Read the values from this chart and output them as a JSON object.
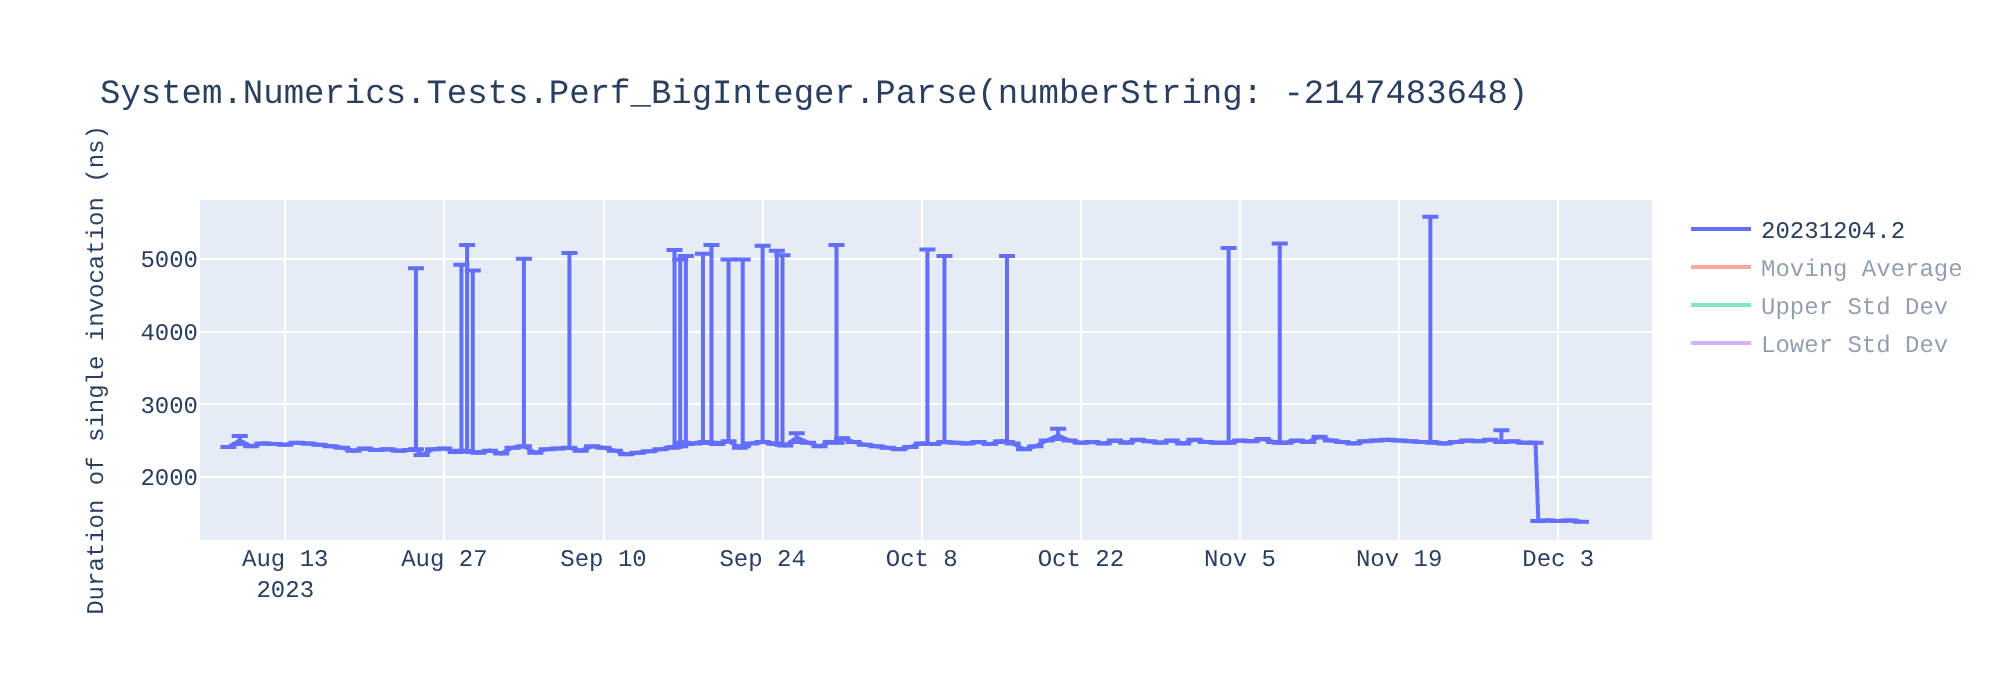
{
  "chart_data": {
    "type": "line",
    "title": "System.Numerics.Tests.Perf_BigInteger.Parse(numberString: -2147483648)",
    "ylabel": "Duration of single invocation (ns)",
    "x": [
      "2023-08-08",
      "2023-08-09",
      "2023-08-10",
      "2023-08-11",
      "2023-08-12",
      "2023-08-13",
      "2023-08-14",
      "2023-08-15",
      "2023-08-16",
      "2023-08-17",
      "2023-08-18",
      "2023-08-19",
      "2023-08-20",
      "2023-08-21",
      "2023-08-22",
      "2023-08-23",
      "2023-08-24",
      "2023-08-24T12:00",
      "2023-08-25",
      "2023-08-26",
      "2023-08-27",
      "2023-08-28",
      "2023-08-28T12:00",
      "2023-08-29",
      "2023-08-29T12:00",
      "2023-08-30",
      "2023-08-31",
      "2023-09-01",
      "2023-09-02",
      "2023-09-03",
      "2023-09-04",
      "2023-09-05",
      "2023-09-06",
      "2023-09-07",
      "2023-09-08",
      "2023-09-09",
      "2023-09-10",
      "2023-09-11",
      "2023-09-12",
      "2023-09-13",
      "2023-09-14",
      "2023-09-15",
      "2023-09-16",
      "2023-09-16T06:00",
      "2023-09-16T18:00",
      "2023-09-17",
      "2023-09-17T06:00",
      "2023-09-18",
      "2023-09-18T18:00",
      "2023-09-19",
      "2023-09-19T12:00",
      "2023-09-20",
      "2023-09-21",
      "2023-09-22",
      "2023-09-22T06:00",
      "2023-09-23",
      "2023-09-24",
      "2023-09-25",
      "2023-09-25T06:00",
      "2023-09-25T18:00",
      "2023-09-26",
      "2023-09-27",
      "2023-09-28",
      "2023-09-29",
      "2023-09-30",
      "2023-09-30T12:00",
      "2023-10-01",
      "2023-10-02",
      "2023-10-03",
      "2023-10-04",
      "2023-10-05",
      "2023-10-06",
      "2023-10-07",
      "2023-10-08",
      "2023-10-08T12:00",
      "2023-10-09",
      "2023-10-10",
      "2023-10-11",
      "2023-10-12",
      "2023-10-13",
      "2023-10-14",
      "2023-10-15",
      "2023-10-15T12:00",
      "2023-10-16",
      "2023-10-17",
      "2023-10-18",
      "2023-10-19",
      "2023-10-20",
      "2023-10-21",
      "2023-10-22",
      "2023-10-23",
      "2023-10-24",
      "2023-10-25",
      "2023-10-26",
      "2023-10-27",
      "2023-10-28",
      "2023-10-29",
      "2023-10-30",
      "2023-10-31",
      "2023-11-01",
      "2023-11-02",
      "2023-11-03",
      "2023-11-04",
      "2023-11-05",
      "2023-11-06",
      "2023-11-07",
      "2023-11-08",
      "2023-11-08T12:00",
      "2023-11-09",
      "2023-11-10",
      "2023-11-11",
      "2023-11-12",
      "2023-11-13",
      "2023-11-14",
      "2023-11-15",
      "2023-11-16",
      "2023-11-17",
      "2023-11-18",
      "2023-11-19",
      "2023-11-20",
      "2023-11-21",
      "2023-11-21T18:00",
      "2023-11-22",
      "2023-11-23",
      "2023-11-24",
      "2023-11-25",
      "2023-11-26",
      "2023-11-27",
      "2023-11-28",
      "2023-11-29",
      "2023-11-30",
      "2023-12-01",
      "2023-12-01T06:00",
      "2023-12-02",
      "2023-12-03",
      "2023-12-04",
      "2023-12-05"
    ],
    "series": [
      {
        "name": "20231204.2",
        "color": "#636efa",
        "values": [
          2410,
          2500,
          2420,
          2460,
          2450,
          2440,
          2470,
          2460,
          2440,
          2420,
          2400,
          2360,
          2390,
          2370,
          2380,
          2360,
          2370,
          2380,
          2300,
          2380,
          2390,
          2340,
          2360,
          2350,
          2340,
          2330,
          2360,
          2320,
          2400,
          2420,
          2330,
          2380,
          2390,
          2400,
          2360,
          2420,
          2400,
          2360,
          2310,
          2330,
          2350,
          2380,
          2400,
          2410,
          2420,
          2470,
          2450,
          2460,
          2470,
          2480,
          2470,
          2450,
          2490,
          2400,
          2420,
          2460,
          2480,
          2460,
          2450,
          2440,
          2430,
          2540,
          2470,
          2420,
          2480,
          2470,
          2530,
          2480,
          2440,
          2420,
          2400,
          2380,
          2410,
          2460,
          2450,
          2450,
          2480,
          2470,
          2460,
          2480,
          2450,
          2490,
          2480,
          2460,
          2380,
          2420,
          2500,
          2570,
          2500,
          2470,
          2480,
          2460,
          2500,
          2470,
          2510,
          2490,
          2470,
          2500,
          2460,
          2510,
          2480,
          2470,
          2470,
          2500,
          2490,
          2520,
          2480,
          2470,
          2470,
          2500,
          2480,
          2550,
          2500,
          2480,
          2460,
          2490,
          2500,
          2510,
          2500,
          2490,
          2480,
          2480,
          2470,
          2460,
          2480,
          2500,
          2490,
          2510,
          2480,
          2490,
          2470,
          2470,
          1390,
          1400,
          1390,
          1400,
          1380
        ],
        "errors": [
          null,
          [
            2450,
            2560
          ],
          null,
          null,
          null,
          null,
          null,
          null,
          null,
          null,
          null,
          null,
          null,
          null,
          null,
          null,
          null,
          [
            2380,
            4870
          ],
          null,
          null,
          null,
          null,
          [
            2360,
            4920
          ],
          [
            2350,
            5190
          ],
          [
            2340,
            4840
          ],
          null,
          null,
          null,
          null,
          [
            2420,
            5000
          ],
          null,
          null,
          null,
          [
            2400,
            5080
          ],
          null,
          null,
          null,
          null,
          null,
          null,
          null,
          null,
          null,
          [
            2410,
            5120
          ],
          [
            2420,
            4990
          ],
          null,
          [
            2450,
            5040
          ],
          null,
          [
            2470,
            5070
          ],
          null,
          [
            2470,
            5190
          ],
          null,
          [
            2490,
            4990
          ],
          null,
          [
            2420,
            4990
          ],
          null,
          [
            2480,
            5180
          ],
          null,
          [
            2450,
            5110
          ],
          [
            2440,
            5050
          ],
          null,
          [
            2480,
            2600
          ],
          null,
          null,
          null,
          [
            2470,
            5190
          ],
          null,
          null,
          null,
          null,
          null,
          null,
          null,
          null,
          [
            2450,
            5130
          ],
          null,
          [
            2480,
            5040
          ],
          null,
          null,
          null,
          null,
          null,
          [
            2480,
            5040
          ],
          null,
          null,
          null,
          null,
          [
            2520,
            2660
          ],
          null,
          null,
          null,
          null,
          null,
          null,
          null,
          null,
          null,
          null,
          null,
          null,
          null,
          null,
          [
            2470,
            5150
          ],
          null,
          null,
          null,
          null,
          [
            2470,
            5210
          ],
          null,
          null,
          null,
          null,
          null,
          null,
          null,
          null,
          null,
          null,
          null,
          null,
          null,
          [
            2480,
            5580
          ],
          null,
          null,
          null,
          null,
          null,
          null,
          [
            2480,
            2640
          ],
          null,
          null,
          null,
          null,
          null,
          null,
          null,
          null
        ]
      },
      {
        "name": "Moving Average",
        "color": "#ef553b",
        "values": [
          null,
          null,
          null,
          null,
          null,
          null,
          null,
          null,
          null,
          null,
          null,
          null,
          null,
          null,
          null,
          null,
          null,
          null,
          null,
          null,
          null,
          null,
          null,
          null,
          null,
          null,
          null,
          null,
          null,
          null,
          null,
          null,
          null,
          null,
          null,
          null,
          null,
          null,
          null,
          null,
          null,
          null,
          null,
          null,
          null,
          null,
          null,
          null,
          null,
          null,
          null,
          null,
          null,
          null,
          null,
          null,
          null,
          null,
          null,
          null,
          null,
          null,
          null,
          null,
          null,
          null,
          null,
          null,
          null,
          null,
          null,
          null,
          null,
          null,
          null,
          null,
          null,
          null,
          null,
          null,
          null,
          null,
          null,
          null,
          null,
          null,
          null,
          null,
          null,
          null,
          null,
          null,
          null,
          null,
          null,
          null,
          null,
          null,
          null,
          null,
          null,
          null,
          null,
          null,
          null,
          null,
          null,
          null,
          null,
          null,
          null,
          null,
          null,
          null,
          null,
          null,
          null,
          null,
          null,
          null,
          null,
          null,
          null,
          null,
          null,
          null,
          null,
          null,
          null,
          null,
          null,
          null,
          null,
          null,
          null,
          null,
          null
        ]
      },
      {
        "name": "Upper Std Dev",
        "color": "#00cc96",
        "values": [
          null,
          null,
          null,
          null,
          null,
          null,
          null,
          null,
          null,
          null,
          null,
          null,
          null,
          null,
          null,
          null,
          null,
          null,
          null,
          null,
          null,
          null,
          null,
          null,
          null,
          null,
          null,
          null,
          null,
          null,
          null,
          null,
          null,
          null,
          null,
          null,
          null,
          null,
          null,
          null,
          null,
          null,
          null,
          null,
          null,
          null,
          null,
          null,
          null,
          null,
          null,
          null,
          null,
          null,
          null,
          null,
          null,
          null,
          null,
          null,
          null,
          null,
          null,
          null,
          null,
          null,
          null,
          null,
          null,
          null,
          null,
          null,
          null,
          null,
          null,
          null,
          null,
          null,
          null,
          null,
          null,
          null,
          null,
          null,
          null,
          null,
          null,
          null,
          null,
          null,
          null,
          null,
          null,
          null,
          null,
          null,
          null,
          null,
          null,
          null,
          null,
          null,
          null,
          null,
          null,
          null,
          null,
          null,
          null,
          null,
          null,
          null,
          null,
          null,
          null,
          null,
          null,
          null,
          null,
          null,
          null,
          null,
          null,
          null,
          null,
          null,
          null,
          null,
          null,
          null,
          null,
          null,
          null,
          null,
          null,
          null,
          null
        ]
      },
      {
        "name": "Lower Std Dev",
        "color": "#ab63fa",
        "values": [
          null,
          null,
          null,
          null,
          null,
          null,
          null,
          null,
          null,
          null,
          null,
          null,
          null,
          null,
          null,
          null,
          null,
          null,
          null,
          null,
          null,
          null,
          null,
          null,
          null,
          null,
          null,
          null,
          null,
          null,
          null,
          null,
          null,
          null,
          null,
          null,
          null,
          null,
          null,
          null,
          null,
          null,
          null,
          null,
          null,
          null,
          null,
          null,
          null,
          null,
          null,
          null,
          null,
          null,
          null,
          null,
          null,
          null,
          null,
          null,
          null,
          null,
          null,
          null,
          null,
          null,
          null,
          null,
          null,
          null,
          null,
          null,
          null,
          null,
          null,
          null,
          null,
          null,
          null,
          null,
          null,
          null,
          null,
          null,
          null,
          null,
          null,
          null,
          null,
          null,
          null,
          null,
          null,
          null,
          null,
          null,
          null,
          null,
          null,
          null,
          null,
          null,
          null,
          null,
          null,
          null,
          null,
          null,
          null,
          null,
          null,
          null,
          null,
          null,
          null,
          null,
          null,
          null,
          null,
          null,
          null,
          null,
          null,
          null,
          null,
          null,
          null,
          null,
          null,
          null,
          null,
          null,
          null,
          null,
          null,
          null,
          null
        ]
      }
    ],
    "xlim": [
      "2023-08-05T12:00",
      "2023-12-11T06:00"
    ],
    "xticks": [
      {
        "value": "2023-08-13",
        "label": "Aug 13\n2023"
      },
      {
        "value": "2023-08-27",
        "label": "Aug 27"
      },
      {
        "value": "2023-09-10",
        "label": "Sep 10"
      },
      {
        "value": "2023-09-24",
        "label": "Sep 24"
      },
      {
        "value": "2023-10-08",
        "label": "Oct 8"
      },
      {
        "value": "2023-10-22",
        "label": "Oct 22"
      },
      {
        "value": "2023-11-05",
        "label": "Nov 5"
      },
      {
        "value": "2023-11-19",
        "label": "Nov 19"
      },
      {
        "value": "2023-12-03",
        "label": "Dec 3"
      }
    ],
    "ylim": [
      1130,
      5810
    ],
    "yticks": [
      2000,
      3000,
      4000,
      5000
    ],
    "grid": true,
    "legend": "top right",
    "marker": "none",
    "line_style": "solid"
  }
}
